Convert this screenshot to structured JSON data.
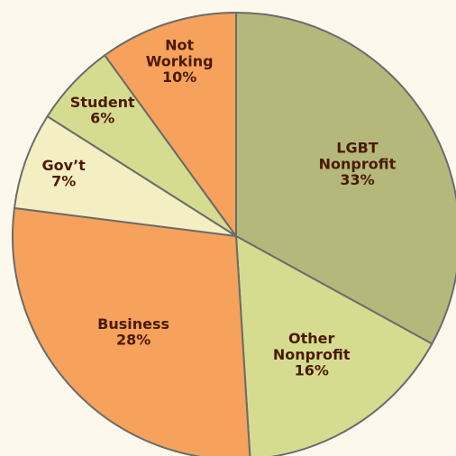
{
  "chart_data": {
    "type": "pie",
    "categories": [
      "LGBT Nonprofit",
      "Other Nonprofit",
      "Business",
      "Gov’t",
      "Student",
      "Not Working"
    ],
    "values": [
      33,
      16,
      28,
      7,
      6,
      10
    ],
    "value_labels": [
      "33%",
      "16%",
      "28%",
      "7%",
      "6%",
      "10%"
    ],
    "colors": [
      "#b5b87b",
      "#d6dc8f",
      "#f6a25c",
      "#f3efc2",
      "#d6dc8f",
      "#f6a25c"
    ]
  }
}
